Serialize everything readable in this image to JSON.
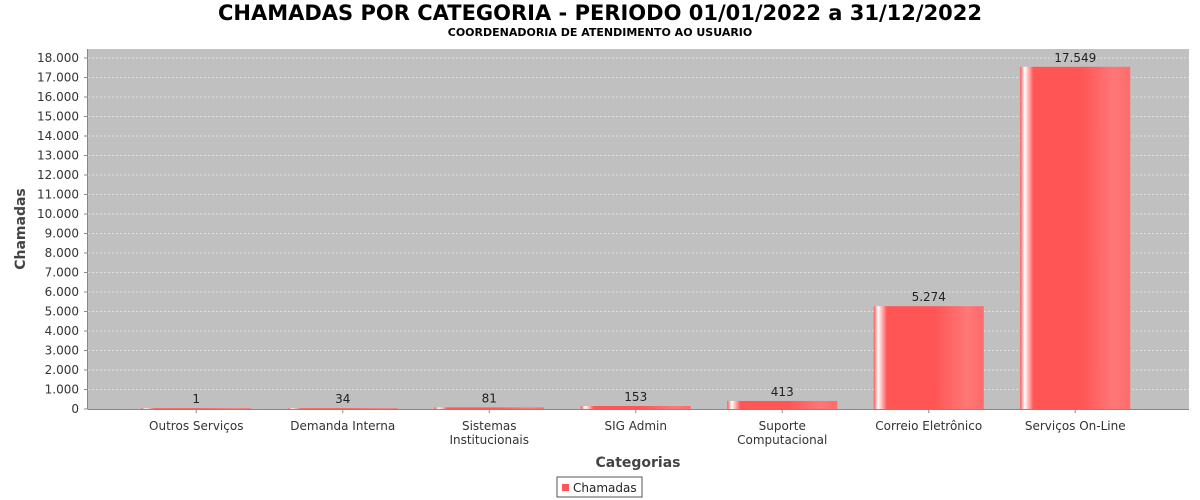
{
  "chart_data": {
    "type": "bar",
    "title": "CHAMADAS POR CATEGORIA - PERIODO 01/01/2022 a 31/12/2022",
    "subtitle": "COORDENADORIA DE ATENDIMENTO AO USUARIO",
    "xlabel": "Categorias",
    "ylabel": "Chamadas",
    "categories": [
      [
        "Outros Serviços"
      ],
      [
        "Demanda Interna"
      ],
      [
        "Sistemas",
        "Institucionais"
      ],
      [
        "SIG Admin"
      ],
      [
        "Suporte",
        "Computacional"
      ],
      [
        "Correio Eletrônico"
      ],
      [
        "Serviços On-Line"
      ]
    ],
    "series": [
      {
        "name": "Chamadas",
        "values": [
          1,
          34,
          81,
          153,
          413,
          5274,
          17549
        ],
        "labels": [
          "1",
          "34",
          "81",
          "153",
          "413",
          "5.274",
          "17.549"
        ]
      }
    ],
    "ylim": [
      0,
      18000
    ],
    "yticks": [
      "0",
      "1.000",
      "2.000",
      "3.000",
      "4.000",
      "5.000",
      "6.000",
      "7.000",
      "8.000",
      "9.000",
      "10.000",
      "11.000",
      "12.000",
      "13.000",
      "14.000",
      "15.000",
      "16.000",
      "17.000",
      "18.000"
    ],
    "grid": true,
    "legend": "bottom-center",
    "colors": {
      "bar": "#ff5555",
      "plot_bg": "#c0c0c0",
      "grid": "#ffffff"
    }
  }
}
